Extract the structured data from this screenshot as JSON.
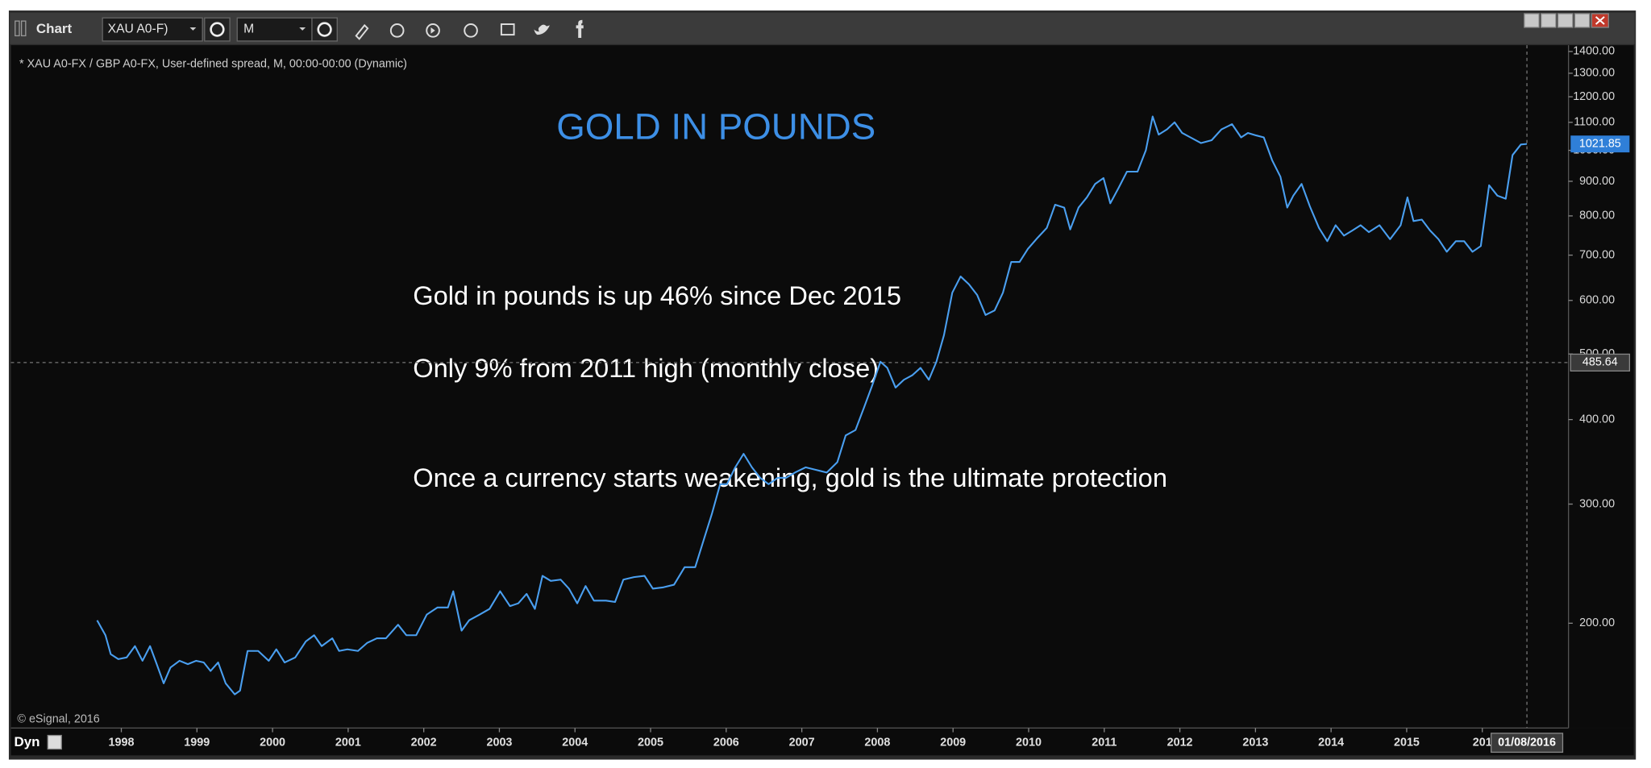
{
  "window": {
    "title": "Chart",
    "symbol": "XAU A0-F)",
    "interval": "M",
    "mode": "Dyn"
  },
  "chart_data": {
    "type": "line",
    "title": "GOLD IN POUNDS",
    "subtitle": "* XAU A0-FX / GBP A0-FX, User-defined spread, M, 00:00-00:00 (Dynamic)",
    "annotations": [
      "Gold in pounds is up 46% since Dec 2015",
      "Only 9% from 2011 high (monthly close)",
      "Once a currency starts weakening, gold is the ultimate protection"
    ],
    "copyright": "© eSignal, 2016",
    "color": "#4a9ff0",
    "log_scale": true,
    "grid": false,
    "xlim": [
      1996.54,
      2017.14
    ],
    "ylim": [
      140,
      1430
    ],
    "xticks": [
      1998,
      1999,
      2000,
      2001,
      2002,
      2003,
      2004,
      2005,
      2006,
      2007,
      2008,
      2009,
      2010,
      2011,
      2012,
      2013,
      2014,
      2015,
      {
        "value": 2016,
        "label": "201"
      }
    ],
    "yticks": [
      {
        "value": 200,
        "label": "200.00"
      },
      {
        "value": 300,
        "label": "300.00"
      },
      {
        "value": 400,
        "label": "400.00"
      },
      {
        "value": 500,
        "label": "500.00"
      },
      {
        "value": 600,
        "label": "600.00"
      },
      {
        "value": 700,
        "label": "700.00"
      },
      {
        "value": 800,
        "label": "800.00"
      },
      {
        "value": 900,
        "label": "900.00"
      },
      {
        "value": 1000,
        "label": "1000.00"
      },
      {
        "value": 1100,
        "label": "1100.00"
      },
      {
        "value": 1200,
        "label": "1200.00"
      },
      {
        "value": 1300,
        "label": "1300.00"
      },
      {
        "value": 1400,
        "label": "1400.00"
      }
    ],
    "last_value": 1021.85,
    "crosshair_value": 485.64,
    "cursor_date": "01/08/2016",
    "cursor_x": 2016.59,
    "x": [
      1997.68,
      1997.79,
      1997.86,
      1997.96,
      1998.07,
      1998.18,
      1998.28,
      1998.38,
      1998.46,
      1998.56,
      1998.65,
      1998.77,
      1998.88,
      1998.99,
      1999.09,
      1999.18,
      1999.28,
      1999.38,
      1999.5,
      1999.57,
      1999.67,
      1999.81,
      1999.95,
      2000.05,
      2000.16,
      2000.3,
      2000.44,
      2000.55,
      2000.65,
      2000.79,
      2000.88,
      2000.99,
      2001.13,
      2001.25,
      2001.38,
      2001.5,
      2001.66,
      2001.77,
      2001.9,
      2002.04,
      2002.18,
      2002.32,
      2002.39,
      2002.5,
      2002.6,
      2002.74,
      2002.87,
      2003.01,
      2003.14,
      2003.25,
      2003.36,
      2003.47,
      2003.57,
      2003.68,
      2003.81,
      2003.92,
      2004.03,
      2004.14,
      2004.25,
      2004.41,
      2004.53,
      2004.64,
      2004.78,
      2004.92,
      2005.03,
      2005.17,
      2005.31,
      2005.45,
      2005.59,
      2005.7,
      2005.81,
      2005.92,
      2006.01,
      2006.12,
      2006.23,
      2006.34,
      2006.45,
      2006.56,
      2006.68,
      2006.79,
      2006.91,
      2007.05,
      2007.19,
      2007.33,
      2007.47,
      2007.58,
      2007.71,
      2007.82,
      2007.93,
      2008.04,
      2008.13,
      2008.24,
      2008.35,
      2008.46,
      2008.57,
      2008.68,
      2008.78,
      2008.88,
      2008.99,
      2009.1,
      2009.21,
      2009.32,
      2009.43,
      2009.55,
      2009.66,
      2009.77,
      2009.88,
      2009.99,
      2010.12,
      2010.24,
      2010.35,
      2010.47,
      2010.55,
      2010.66,
      2010.77,
      2010.88,
      2010.99,
      2011.08,
      2011.19,
      2011.3,
      2011.44,
      2011.55,
      2011.64,
      2011.72,
      2011.83,
      2011.93,
      2012.03,
      2012.14,
      2012.28,
      2012.42,
      2012.55,
      2012.69,
      2012.81,
      2012.9,
      2013.01,
      2013.11,
      2013.22,
      2013.33,
      2013.42,
      2013.5,
      2013.61,
      2013.72,
      2013.84,
      2013.95,
      2014.06,
      2014.17,
      2014.28,
      2014.39,
      2014.5,
      2014.64,
      2014.78,
      2014.92,
      2015.01,
      2015.09,
      2015.2,
      2015.31,
      2015.42,
      2015.53,
      2015.65,
      2015.76,
      2015.87,
      2015.98,
      2016.09,
      2016.2,
      2016.31,
      2016.4,
      2016.51,
      2016.59
    ],
    "values": [
      202,
      192,
      180,
      177,
      178,
      185,
      176,
      185,
      175,
      163,
      172,
      176,
      174,
      176,
      175,
      170,
      175,
      163,
      157,
      159,
      182,
      182,
      176,
      183,
      175,
      178,
      188,
      192,
      185,
      190,
      182,
      183,
      182,
      187,
      190,
      190,
      199,
      192,
      192,
      206,
      211,
      211,
      223,
      195,
      202,
      206,
      210,
      223,
      212,
      214,
      221,
      210,
      235,
      231,
      232,
      225,
      214,
      227,
      216,
      216,
      215,
      232,
      234,
      235,
      225,
      226,
      228,
      242,
      242,
      265,
      290,
      321,
      321,
      340,
      356,
      340,
      328,
      321,
      328,
      328,
      334,
      340,
      337,
      334,
      346,
      379,
      386,
      416,
      449,
      487,
      477,
      446,
      458,
      465,
      477,
      458,
      487,
      533,
      616,
      651,
      634,
      611,
      571,
      580,
      616,
      684,
      684,
      715,
      743,
      768,
      831,
      823,
      764,
      823,
      852,
      892,
      910,
      835,
      880,
      930,
      930,
      1000,
      1122,
      1055,
      1074,
      1100,
      1061,
      1045,
      1025,
      1035,
      1074,
      1093,
      1045,
      1061,
      1052,
      1045,
      967,
      914,
      823,
      857,
      892,
      826,
      768,
      734,
      775,
      748,
      761,
      775,
      757,
      775,
      739,
      775,
      852,
      786,
      790,
      761,
      739,
      708,
      734,
      734,
      708,
      722,
      888,
      857,
      848,
      984,
      1020,
      1022
    ]
  }
}
